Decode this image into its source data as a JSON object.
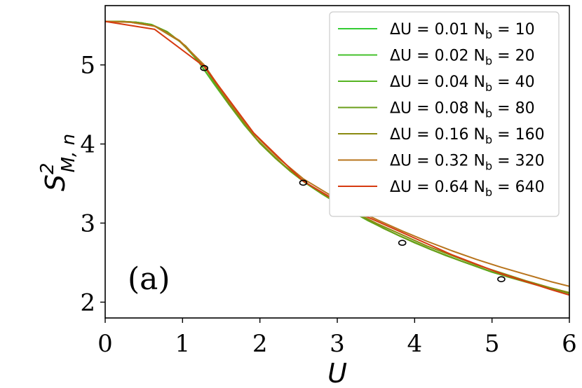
{
  "chart_data": {
    "type": "line",
    "xlabel": "U",
    "ylabel": "S²_{M, n}",
    "xlim": [
      0,
      6
    ],
    "ylim": [
      1.8,
      5.75
    ],
    "xticks": [
      "0",
      "1",
      "2",
      "3",
      "4",
      "5",
      "6"
    ],
    "yticks": [
      "2",
      "3",
      "4",
      "5"
    ],
    "grid": false,
    "legend_position": "top-right",
    "annotation": "(a)",
    "series": [
      {
        "name": "ΔU = 0.01 N_b = 10",
        "color": "#33cc33",
        "x": [
          0,
          0.2,
          0.4,
          0.6,
          0.8,
          1.0,
          1.2,
          1.4,
          1.6,
          1.8,
          2.0,
          2.2,
          2.4,
          2.6,
          2.8,
          3.0,
          3.4,
          3.8,
          4.2,
          4.6,
          5.0,
          5.5,
          6.0
        ],
        "y": [
          5.55,
          5.55,
          5.54,
          5.51,
          5.42,
          5.27,
          5.05,
          4.77,
          4.5,
          4.24,
          4.01,
          3.82,
          3.65,
          3.5,
          3.37,
          3.25,
          3.03,
          2.84,
          2.67,
          2.52,
          2.38,
          2.24,
          2.12
        ]
      },
      {
        "name": "ΔU = 0.02 N_b = 20",
        "color": "#44c12b",
        "x": [
          0,
          0.2,
          0.4,
          0.6,
          0.8,
          1.0,
          1.2,
          1.4,
          1.6,
          1.8,
          2.0,
          2.2,
          2.4,
          2.6,
          2.8,
          3.0,
          3.4,
          3.8,
          4.2,
          4.6,
          5.0,
          5.5,
          6.0
        ],
        "y": [
          5.55,
          5.55,
          5.54,
          5.51,
          5.42,
          5.27,
          5.05,
          4.77,
          4.5,
          4.24,
          4.01,
          3.82,
          3.65,
          3.5,
          3.37,
          3.25,
          3.03,
          2.84,
          2.67,
          2.52,
          2.38,
          2.24,
          2.12
        ]
      },
      {
        "name": "ΔU = 0.04 N_b = 40",
        "color": "#55b422",
        "x": [
          0,
          0.2,
          0.4,
          0.6,
          0.8,
          1.0,
          1.2,
          1.4,
          1.6,
          1.8,
          2.0,
          2.2,
          2.4,
          2.6,
          2.8,
          3.0,
          3.4,
          3.8,
          4.2,
          4.6,
          5.0,
          5.5,
          6.0
        ],
        "y": [
          5.55,
          5.55,
          5.54,
          5.51,
          5.42,
          5.27,
          5.05,
          4.77,
          4.5,
          4.24,
          4.01,
          3.82,
          3.65,
          3.5,
          3.37,
          3.25,
          3.03,
          2.84,
          2.67,
          2.52,
          2.38,
          2.24,
          2.12
        ]
      },
      {
        "name": "ΔU = 0.08 N_b = 80",
        "color": "#6a9e1a",
        "x": [
          0,
          0.24,
          0.48,
          0.64,
          0.8,
          1.04,
          1.28,
          1.6,
          2.0,
          2.4,
          2.8,
          3.2,
          3.6,
          4.0,
          4.4,
          4.8,
          5.2,
          5.6,
          6.0
        ],
        "y": [
          5.55,
          5.55,
          5.53,
          5.49,
          5.42,
          5.24,
          4.98,
          4.5,
          4.01,
          3.65,
          3.37,
          3.14,
          2.93,
          2.75,
          2.59,
          2.45,
          2.32,
          2.21,
          2.11
        ]
      },
      {
        "name": "ΔU = 0.16 N_b = 160",
        "color": "#8a8a10",
        "x": [
          0,
          0.32,
          0.64,
          0.96,
          1.28,
          1.6,
          1.92,
          2.24,
          2.56,
          2.88,
          3.2,
          3.52,
          3.84,
          4.16,
          4.48,
          4.8,
          5.12,
          5.44,
          5.76,
          6.0
        ],
        "y": [
          5.55,
          5.54,
          5.49,
          5.3,
          4.99,
          4.52,
          4.1,
          3.79,
          3.53,
          3.33,
          3.15,
          2.99,
          2.85,
          2.71,
          2.59,
          2.47,
          2.37,
          2.27,
          2.18,
          2.12
        ]
      },
      {
        "name": "ΔU = 0.32 N_b = 320",
        "color": "#b8741c",
        "x": [
          0,
          0.32,
          0.64,
          0.96,
          1.28,
          1.6,
          1.92,
          2.24,
          2.56,
          2.88,
          3.2,
          3.52,
          3.84,
          4.16,
          4.48,
          4.8,
          5.12,
          5.44,
          5.76,
          6.0
        ],
        "y": [
          5.55,
          5.54,
          5.49,
          5.31,
          5.0,
          4.54,
          4.13,
          3.82,
          3.56,
          3.37,
          3.19,
          3.04,
          2.9,
          2.77,
          2.65,
          2.54,
          2.44,
          2.35,
          2.26,
          2.2
        ]
      },
      {
        "name": "ΔU = 0.64 N_b = 640",
        "color": "#d63a10",
        "x": [
          0,
          0.64,
          1.28,
          1.92,
          2.56,
          3.2,
          3.84,
          4.48,
          5.12,
          5.76,
          6.0
        ],
        "y": [
          5.55,
          5.45,
          4.98,
          4.14,
          3.53,
          3.16,
          2.88,
          2.6,
          2.36,
          2.16,
          2.09
        ]
      }
    ],
    "markers": {
      "color": "#000000",
      "x": [
        1.28,
        2.56,
        3.84,
        5.12
      ],
      "y": [
        4.96,
        3.51,
        2.75,
        2.29
      ]
    }
  }
}
